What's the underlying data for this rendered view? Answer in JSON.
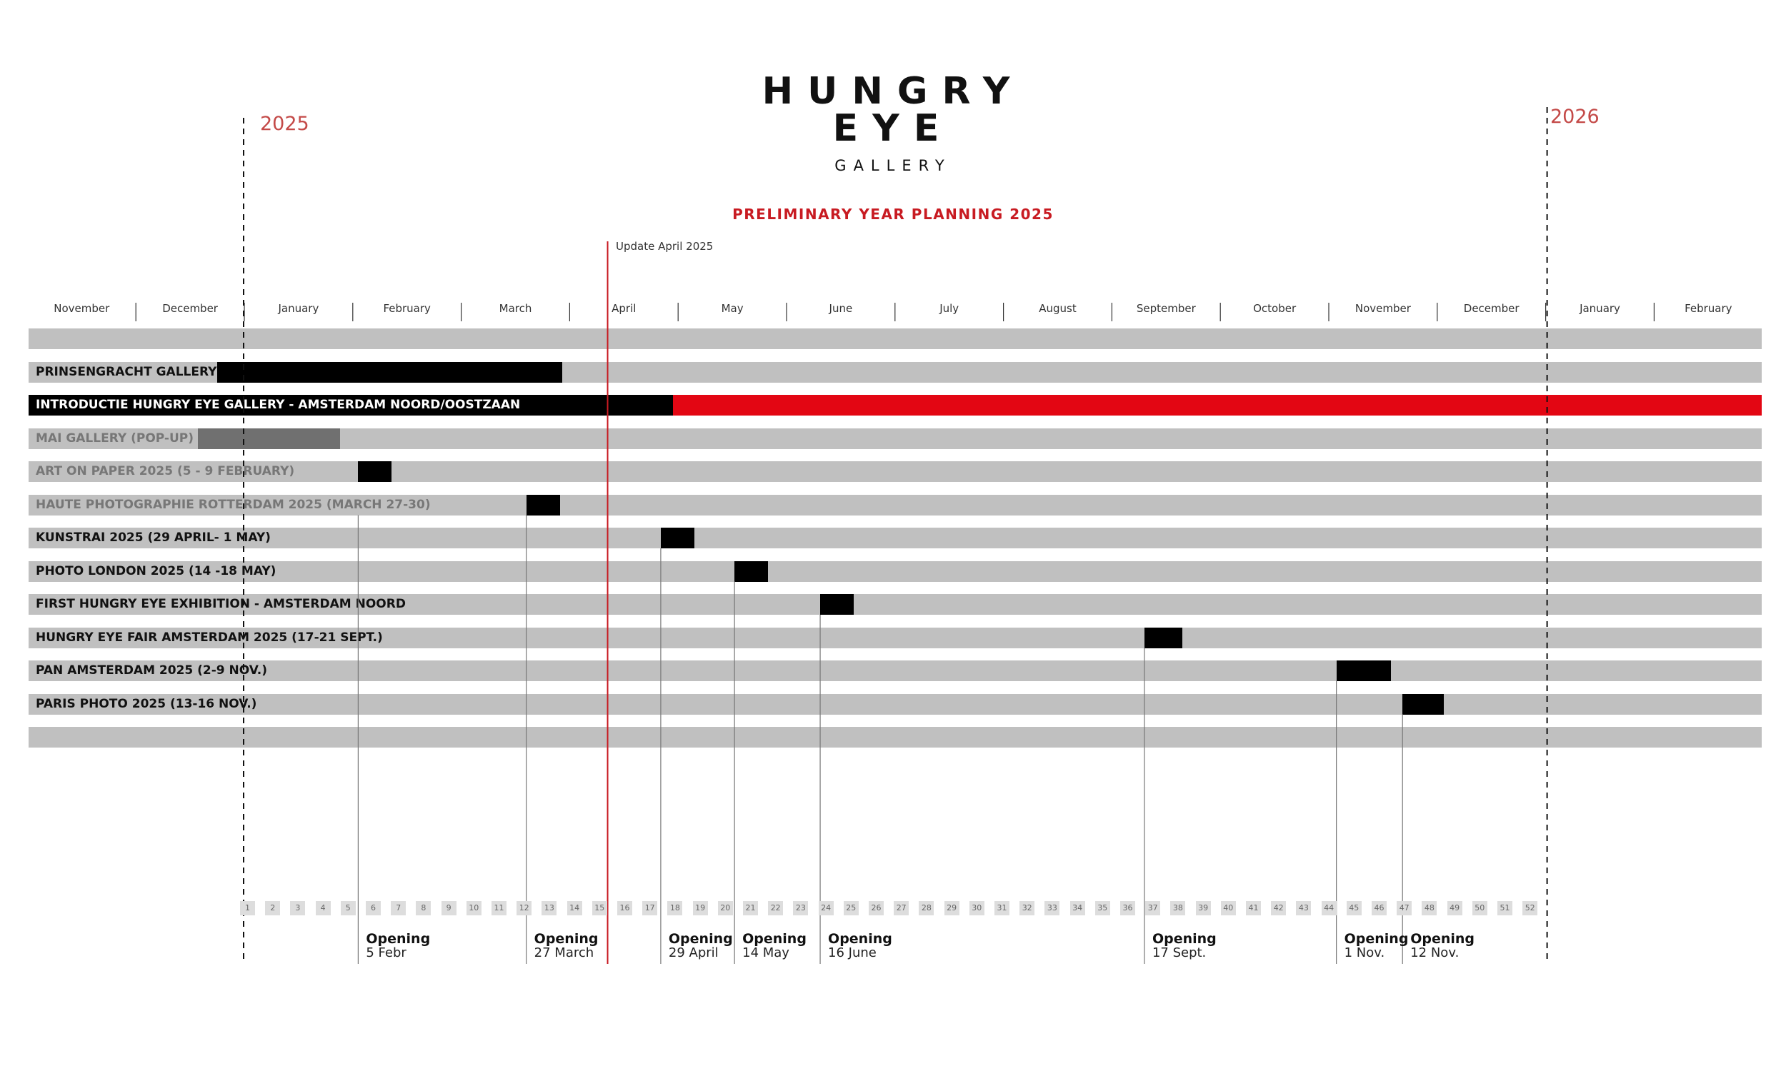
{
  "header": {
    "logo_lines": [
      "HUNGRY",
      "EYE",
      "GALLERY"
    ],
    "title": "PRELIMINARY YEAR PLANNING 2025",
    "update_note": "Update April 2025",
    "year_start": "2025",
    "year_end": "2026"
  },
  "colors": {
    "row_background": "#c0c0c0",
    "bar_black": "#000000",
    "bar_red": "#e30613",
    "bar_gray": "#707070",
    "accent_red": "#c81b22",
    "label_dark": "#111111",
    "label_gray": "#777777",
    "label_white": "#ffffff"
  },
  "timeline": {
    "months": [
      "November",
      "December",
      "January",
      "February",
      "March",
      "April",
      "May",
      "June",
      "July",
      "August",
      "September",
      "October",
      "November",
      "December",
      "January",
      "February"
    ],
    "months_start_index": -2,
    "year_start_boundary_month": 0,
    "year_end_boundary_month": 12,
    "update_marker_month": 3.35,
    "weeks": [
      "1",
      "2",
      "3",
      "4",
      "5",
      "6",
      "7",
      "8",
      "9",
      "10",
      "11",
      "12",
      "13",
      "14",
      "15",
      "16",
      "17",
      "18",
      "19",
      "20",
      "21",
      "22",
      "23",
      "24",
      "25",
      "26",
      "27",
      "28",
      "29",
      "30",
      "31",
      "32",
      "33",
      "34",
      "35",
      "36",
      "37",
      "38",
      "39",
      "40",
      "41",
      "42",
      "43",
      "44",
      "45",
      "46",
      "47",
      "48",
      "49",
      "50",
      "51",
      "52"
    ]
  },
  "rows": [
    {
      "label": "",
      "label_color": "dark",
      "bars": []
    },
    {
      "label": "PRINSENGRACHT GALLERY",
      "label_color": "dark",
      "bars": [
        {
          "start": -0.25,
          "end": 2.93,
          "color": "black"
        }
      ]
    },
    {
      "label": "INTRODUCTIE HUNGRY EYE GALLERY - AMSTERDAM NOORD/OOSTZAAN",
      "label_color": "white",
      "bars": [
        {
          "start": -2.0,
          "end": 3.95,
          "color": "black"
        },
        {
          "start": 3.95,
          "end": 14.0,
          "color": "red"
        }
      ]
    },
    {
      "label": "MAI GALLERY (POP-UP)",
      "label_color": "gray",
      "bars": [
        {
          "start": -0.43,
          "end": 0.88,
          "color": "gray"
        }
      ]
    },
    {
      "label": "ART ON PAPER 2025 (5 - 9 FEBRUARY)",
      "label_color": "gray",
      "bars": [
        {
          "start": 1.05,
          "end": 1.36,
          "color": "black"
        }
      ]
    },
    {
      "label": "HAUTE PHOTOGRAPHIE ROTTERDAM 2025 (MARCH 27-30)",
      "label_color": "gray",
      "bars": [
        {
          "start": 2.6,
          "end": 2.91,
          "color": "black"
        }
      ]
    },
    {
      "label": "KUNSTRAI 2025 (29 APRIL- 1 MAY)",
      "label_color": "dark",
      "bars": [
        {
          "start": 3.84,
          "end": 4.15,
          "color": "black"
        }
      ]
    },
    {
      "label": "PHOTO LONDON  2025 (14 -18 MAY)",
      "label_color": "dark",
      "bars": [
        {
          "start": 4.52,
          "end": 4.83,
          "color": "black"
        }
      ]
    },
    {
      "label": "FIRST HUNGRY EYE EXHIBITION - AMSTERDAM NOORD",
      "label_color": "dark",
      "bars": [
        {
          "start": 5.31,
          "end": 5.62,
          "color": "black"
        }
      ]
    },
    {
      "label": "HUNGRY EYE FAIR AMSTERDAM 2025 (17-21 SEPT.)",
      "label_color": "dark",
      "bars": [
        {
          "start": 8.3,
          "end": 8.65,
          "color": "black"
        }
      ]
    },
    {
      "label": "PAN AMSTERDAM 2025 (2-9 NOV.)",
      "label_color": "dark",
      "bars": [
        {
          "start": 10.07,
          "end": 10.57,
          "color": "black"
        }
      ]
    },
    {
      "label": "PARIS PHOTO 2025 (13-16 NOV.)",
      "label_color": "dark",
      "bars": [
        {
          "start": 10.68,
          "end": 11.06,
          "color": "black"
        }
      ]
    },
    {
      "label": "",
      "label_color": "dark",
      "bars": []
    }
  ],
  "openings": [
    {
      "title": "Opening",
      "date": "5 Febr",
      "month_pos": 1.05,
      "from_row": 5
    },
    {
      "title": "Opening",
      "date": "27 March",
      "month_pos": 2.6,
      "from_row": 5
    },
    {
      "title": "Opening",
      "date": "29  April",
      "month_pos": 3.84,
      "from_row": 6
    },
    {
      "title": "Opening",
      "date": "14  May",
      "month_pos": 4.52,
      "from_row": 7
    },
    {
      "title": "Opening",
      "date": "16  June",
      "month_pos": 5.31,
      "from_row": 8
    },
    {
      "title": "Opening",
      "date": "17 Sept.",
      "month_pos": 8.3,
      "from_row": 9
    },
    {
      "title": "Opening",
      "date": "1 Nov.",
      "month_pos": 10.07,
      "from_row": 10
    },
    {
      "title": "Opening",
      "date": "12 Nov.",
      "month_pos": 10.68,
      "from_row": 11
    }
  ]
}
